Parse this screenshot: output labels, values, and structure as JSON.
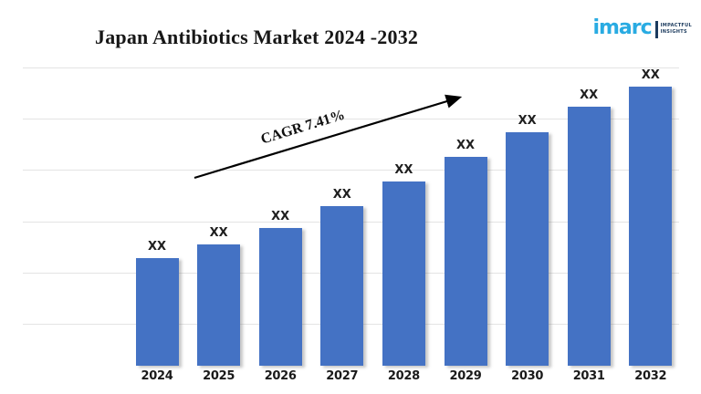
{
  "header": {
    "title": "Japan Antibiotics Market 2024 -2032",
    "logo": {
      "brand": "imarc",
      "tagline_line1": "IMPACTFUL",
      "tagline_line2": "INSIGHTS",
      "brand_color": "#29ABE2",
      "tagline_color": "#1c3b5e"
    }
  },
  "chart_data": {
    "type": "bar",
    "title": "Japan Antibiotics Market 2024 -2032",
    "categories": [
      "2024",
      "2025",
      "2026",
      "2027",
      "2028",
      "2029",
      "2030",
      "2031",
      "2032"
    ],
    "values": [
      118,
      133,
      151,
      175,
      202,
      229,
      256,
      284,
      306
    ],
    "value_labels": [
      "XX",
      "XX",
      "XX",
      "XX",
      "XX",
      "XX",
      "XX",
      "XX",
      "XX"
    ],
    "values_note": "actual values masked as XX on chart; values are relative bar heights",
    "xlabel": "",
    "ylabel": "",
    "legend": "none",
    "grid": "horizontal",
    "bar_color": "#4472C4",
    "annotation": {
      "text": "CAGR 7.41%",
      "style": "rising-arrow"
    }
  }
}
